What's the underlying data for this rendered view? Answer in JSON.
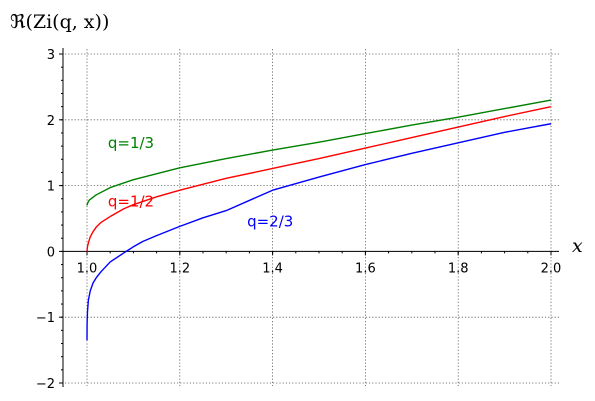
{
  "chart_data": {
    "type": "line",
    "ylabel": "ℜ(Zi(q, x))",
    "xlabel": "x",
    "xlim": [
      1.0,
      2.0
    ],
    "ylim": [
      -2.0,
      3.0
    ],
    "xticks": [
      "1.0",
      "1.2",
      "1.4",
      "1.6",
      "1.8",
      "2.0"
    ],
    "yticks": [
      "−2",
      "−1",
      "0",
      "1",
      "2",
      "3"
    ],
    "grid": true,
    "series": [
      {
        "name": "q=1/3",
        "color": "#008000",
        "x": [
          1.0,
          1.001,
          1.005,
          1.02,
          1.05,
          1.1,
          1.2,
          1.3,
          1.4,
          1.5,
          1.6,
          1.7,
          1.8,
          1.9,
          2.0
        ],
        "y": [
          0.7,
          0.73,
          0.78,
          0.86,
          0.97,
          1.09,
          1.27,
          1.41,
          1.54,
          1.66,
          1.79,
          1.92,
          2.04,
          2.17,
          2.3
        ]
      },
      {
        "name": "q=1/2",
        "color": "#ff0000",
        "x": [
          1.0,
          1.001,
          1.003,
          1.007,
          1.013,
          1.02,
          1.03,
          1.05,
          1.08,
          1.1,
          1.15,
          1.2,
          1.3,
          1.4,
          1.5,
          1.6,
          1.7,
          1.8,
          1.9,
          2.0
        ],
        "y": [
          0.0,
          0.07,
          0.13,
          0.22,
          0.3,
          0.37,
          0.44,
          0.53,
          0.65,
          0.71,
          0.83,
          0.93,
          1.11,
          1.26,
          1.41,
          1.57,
          1.73,
          1.89,
          2.05,
          2.2
        ]
      },
      {
        "name": "q=2/3",
        "color": "#0000ff",
        "x": [
          1.0,
          1.0002,
          1.001,
          1.003,
          1.007,
          1.013,
          1.02,
          1.03,
          1.05,
          1.08,
          1.1,
          1.12,
          1.15,
          1.2,
          1.25,
          1.3,
          1.4,
          1.5,
          1.6,
          1.7,
          1.8,
          1.9,
          2.0
        ],
        "y": [
          -1.35,
          -1.1,
          -0.92,
          -0.74,
          -0.6,
          -0.48,
          -0.4,
          -0.31,
          -0.16,
          -0.02,
          0.07,
          0.15,
          0.24,
          0.38,
          0.51,
          0.62,
          0.93,
          1.13,
          1.32,
          1.49,
          1.65,
          1.81,
          1.94
        ]
      }
    ],
    "annotations": [
      {
        "text": "q=1/3",
        "color": "#008000",
        "x": 1.045,
        "y": 1.57
      },
      {
        "text": "q=1/2",
        "color": "#ff0000",
        "x": 1.045,
        "y": 0.68
      },
      {
        "text": "q=2/3",
        "color": "#0000ff",
        "x": 1.345,
        "y": 0.38
      }
    ]
  }
}
